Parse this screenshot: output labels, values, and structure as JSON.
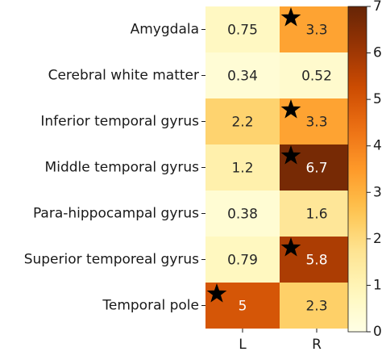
{
  "chart_data": {
    "type": "heatmap",
    "rows": [
      "Amygdala",
      "Cerebral white matter",
      "Inferior temporal gyrus",
      "Middle temporal gyrus",
      "Para-hippocampal gyrus",
      "Superior temporeal gyrus ",
      "Temporal pole"
    ],
    "columns": [
      "L",
      "R"
    ],
    "values": [
      [
        0.75,
        3.3
      ],
      [
        0.34,
        0.52
      ],
      [
        2.2,
        3.3
      ],
      [
        1.2,
        6.7
      ],
      [
        0.38,
        1.6
      ],
      [
        0.79,
        5.8
      ],
      [
        5,
        2.3
      ]
    ],
    "value_labels": [
      [
        "0.75",
        "3.3"
      ],
      [
        "0.34",
        "0.52"
      ],
      [
        "2.2",
        "3.3"
      ],
      [
        "1.2",
        "6.7"
      ],
      [
        "0.38",
        "1.6"
      ],
      [
        "0.79",
        "5.8"
      ],
      [
        "5",
        "2.3"
      ]
    ],
    "stars": [
      [
        false,
        true
      ],
      [
        false,
        false
      ],
      [
        false,
        true
      ],
      [
        false,
        true
      ],
      [
        false,
        false
      ],
      [
        false,
        true
      ],
      [
        true,
        false
      ]
    ],
    "colorbar": {
      "range": [
        0,
        7
      ],
      "ticks": [
        "0",
        "1",
        "2",
        "3",
        "4",
        "5",
        "6",
        "7"
      ],
      "colormap": "YlOrBr"
    },
    "star_color": "#000000"
  }
}
